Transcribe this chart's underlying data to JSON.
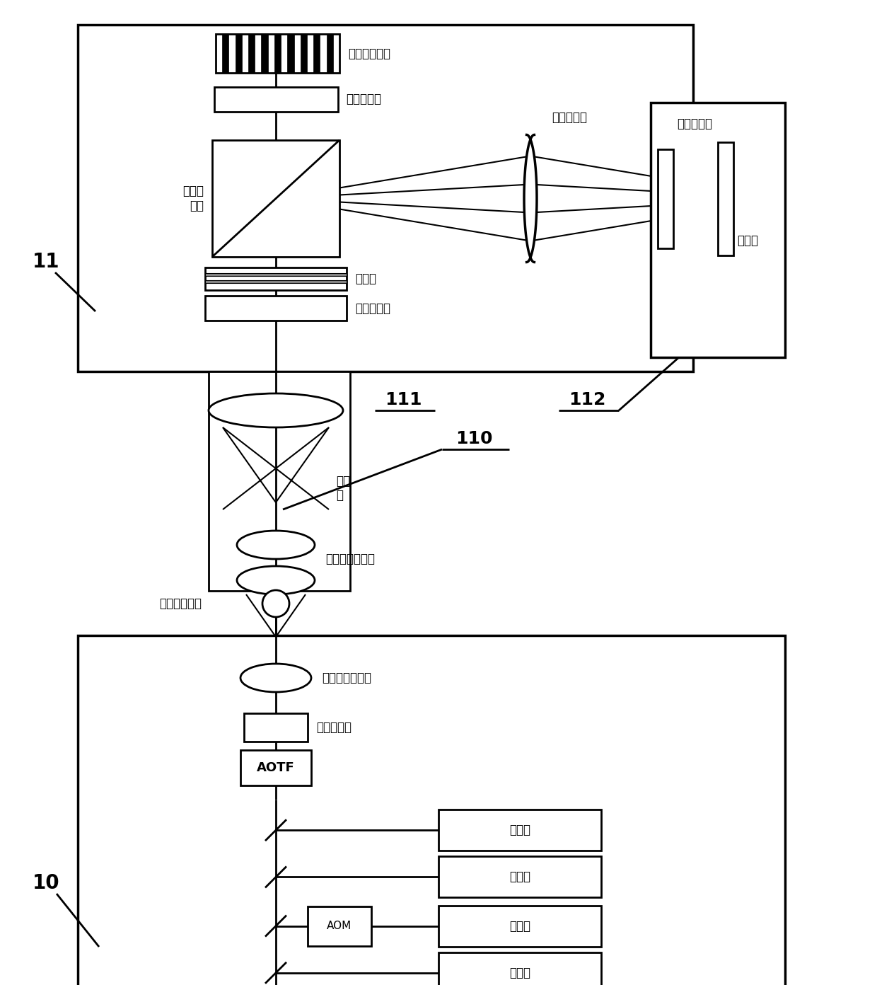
{
  "bg_color": "#ffffff",
  "lc": "#000000",
  "labels": {
    "spatial_modulator": "空间光调制器",
    "third_hwp": "第三半波片",
    "fourier_lens": "傅里叶透镜",
    "fourth_hwp": "第四半波片",
    "pbs": "偏振分\n光镜",
    "filter": "滤光片",
    "second_hwp": "第二半波片",
    "pinhole": "针孔板",
    "beam_expander": "扩束\n镜",
    "second_coupler": "第二光纤耦合器",
    "pmf": "保偏单模光纤",
    "first_coupler": "第一光纤耦合器",
    "first_hwp": "第一半波片",
    "aotf": "AOTF",
    "aom": "AOM",
    "laser": "激光器",
    "label_11": "11",
    "label_10": "10",
    "label_110": "110",
    "label_111": "111",
    "label_112": "112"
  }
}
